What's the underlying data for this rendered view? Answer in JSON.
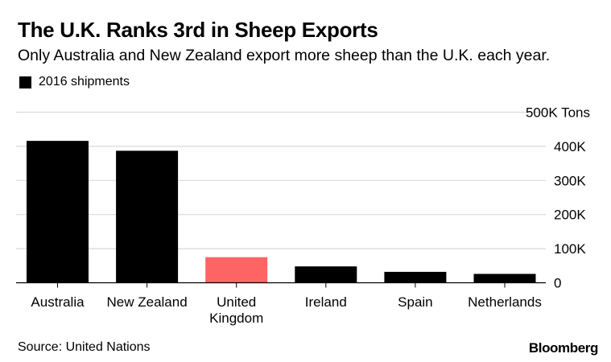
{
  "title": "The U.K. Ranks 3rd in Sheep Exports",
  "subtitle": "Only Australia and New Zealand export more sheep than the U.K. each year.",
  "source": "Source: United Nations",
  "brand": "Bloomberg",
  "chart_data": {
    "type": "bar",
    "title": "The U.K. Ranks 3rd in Sheep Exports",
    "xlabel": "",
    "ylabel": "Tons",
    "legend": {
      "entries": [
        "2016 shipments"
      ],
      "placement": "top-left"
    },
    "categories": [
      [
        "Australia"
      ],
      [
        "New Zealand"
      ],
      [
        "United",
        "Kingdom"
      ],
      [
        "Ireland"
      ],
      [
        "Spain"
      ],
      [
        "Netherlands"
      ]
    ],
    "series": [
      {
        "name": "2016 shipments",
        "values": [
          416000,
          387000,
          75000,
          48000,
          32000,
          26000
        ]
      }
    ],
    "highlight_index": 2,
    "colors": {
      "default": "#000000",
      "highlight": "#ff6464",
      "grid": "#d9d9d9"
    },
    "ylim": [
      0,
      500000
    ],
    "yticks": [
      0,
      100000,
      200000,
      300000,
      400000,
      500000
    ],
    "ytick_labels": [
      "0",
      "100K",
      "200K",
      "300K",
      "400K",
      "500K Tons"
    ],
    "grid": true,
    "axis_side": "right"
  }
}
